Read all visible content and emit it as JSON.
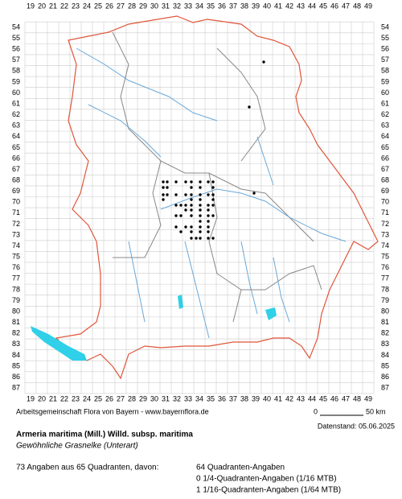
{
  "grid": {
    "columns": [
      19,
      20,
      21,
      22,
      23,
      24,
      25,
      26,
      27,
      28,
      29,
      30,
      31,
      32,
      33,
      34,
      35,
      36,
      37,
      38,
      39,
      40,
      41,
      42,
      43,
      44,
      45,
      46,
      47,
      48,
      49
    ],
    "rows": [
      54,
      55,
      56,
      57,
      58,
      59,
      60,
      61,
      62,
      63,
      64,
      65,
      66,
      67,
      68,
      69,
      70,
      71,
      72,
      73,
      74,
      75,
      76,
      77,
      78,
      79,
      80,
      81,
      82,
      83,
      84,
      85,
      86,
      87
    ]
  },
  "footer": {
    "credit": "Arbeitsgemeinschaft Flora von Bayern - www.bayernflora.de",
    "date": "Datenstand: 05.06.2025",
    "scale_start": "0",
    "scale_end": "50 km"
  },
  "species": {
    "name": "Armeria maritima (Mill.) Willd. subsp. maritima",
    "common_name": "Gewöhnliche Grasnelke (Unterart)"
  },
  "summary": {
    "total": "73 Angaben aus 65 Quadranten, davon:",
    "lines": [
      "64 Quadranten-Angaben",
      "0 1/4-Quadranten-Angaben (1/16 MTB)",
      "1 1/16-Quadranten-Angaben (1/64 MTB)"
    ]
  }
}
